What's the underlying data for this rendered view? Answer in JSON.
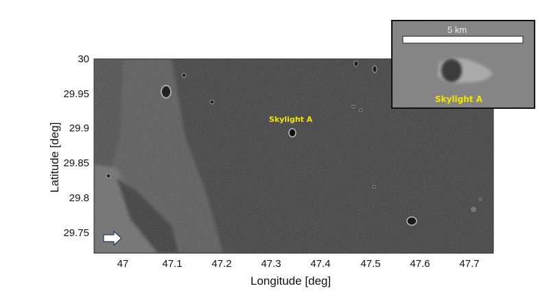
{
  "axes": {
    "xlabel": "Longitude [deg]",
    "ylabel": "Latitude [deg]",
    "xticks": [
      "47",
      "47.1",
      "47.2",
      "47.3",
      "47.4",
      "47.5",
      "47.6",
      "47.7"
    ],
    "yticks": [
      "30",
      "29.95",
      "29.9",
      "29.85",
      "29.8",
      "29.75"
    ],
    "xlim": [
      46.94,
      47.75
    ],
    "ylim": [
      29.72,
      30.0
    ]
  },
  "annotation": {
    "label": "Skylight A",
    "color": "#f2e600"
  },
  "inset": {
    "scale_label": "5 km",
    "label": "Skylight A"
  },
  "arrow": {
    "icon": "right-arrow-icon",
    "direction": "right"
  }
}
